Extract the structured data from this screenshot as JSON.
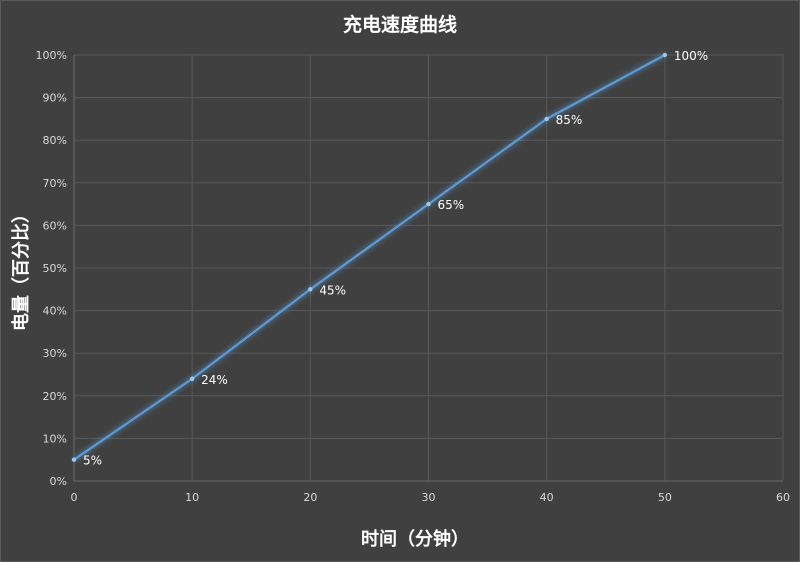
{
  "chart_data": {
    "type": "line",
    "title": "充电速度曲线",
    "xlabel": "时间（分钟）",
    "ylabel": "电量（百分比）",
    "xlim": [
      0,
      60
    ],
    "ylim": [
      0,
      100
    ],
    "x_ticks": [
      "0",
      "10",
      "20",
      "30",
      "40",
      "50",
      "60"
    ],
    "y_ticks": [
      "0%",
      "10%",
      "20%",
      "30%",
      "40%",
      "50%",
      "60%",
      "70%",
      "80%",
      "90%",
      "100%"
    ],
    "grid": true,
    "legend": "none",
    "series": [
      {
        "x": [
          0,
          10,
          20,
          30,
          40,
          50
        ],
        "y": [
          5,
          24,
          45,
          65,
          85,
          100
        ],
        "labels": [
          "5%",
          "24%",
          "45%",
          "65%",
          "85%",
          "100%"
        ],
        "color": "#5b9bd5"
      }
    ]
  }
}
